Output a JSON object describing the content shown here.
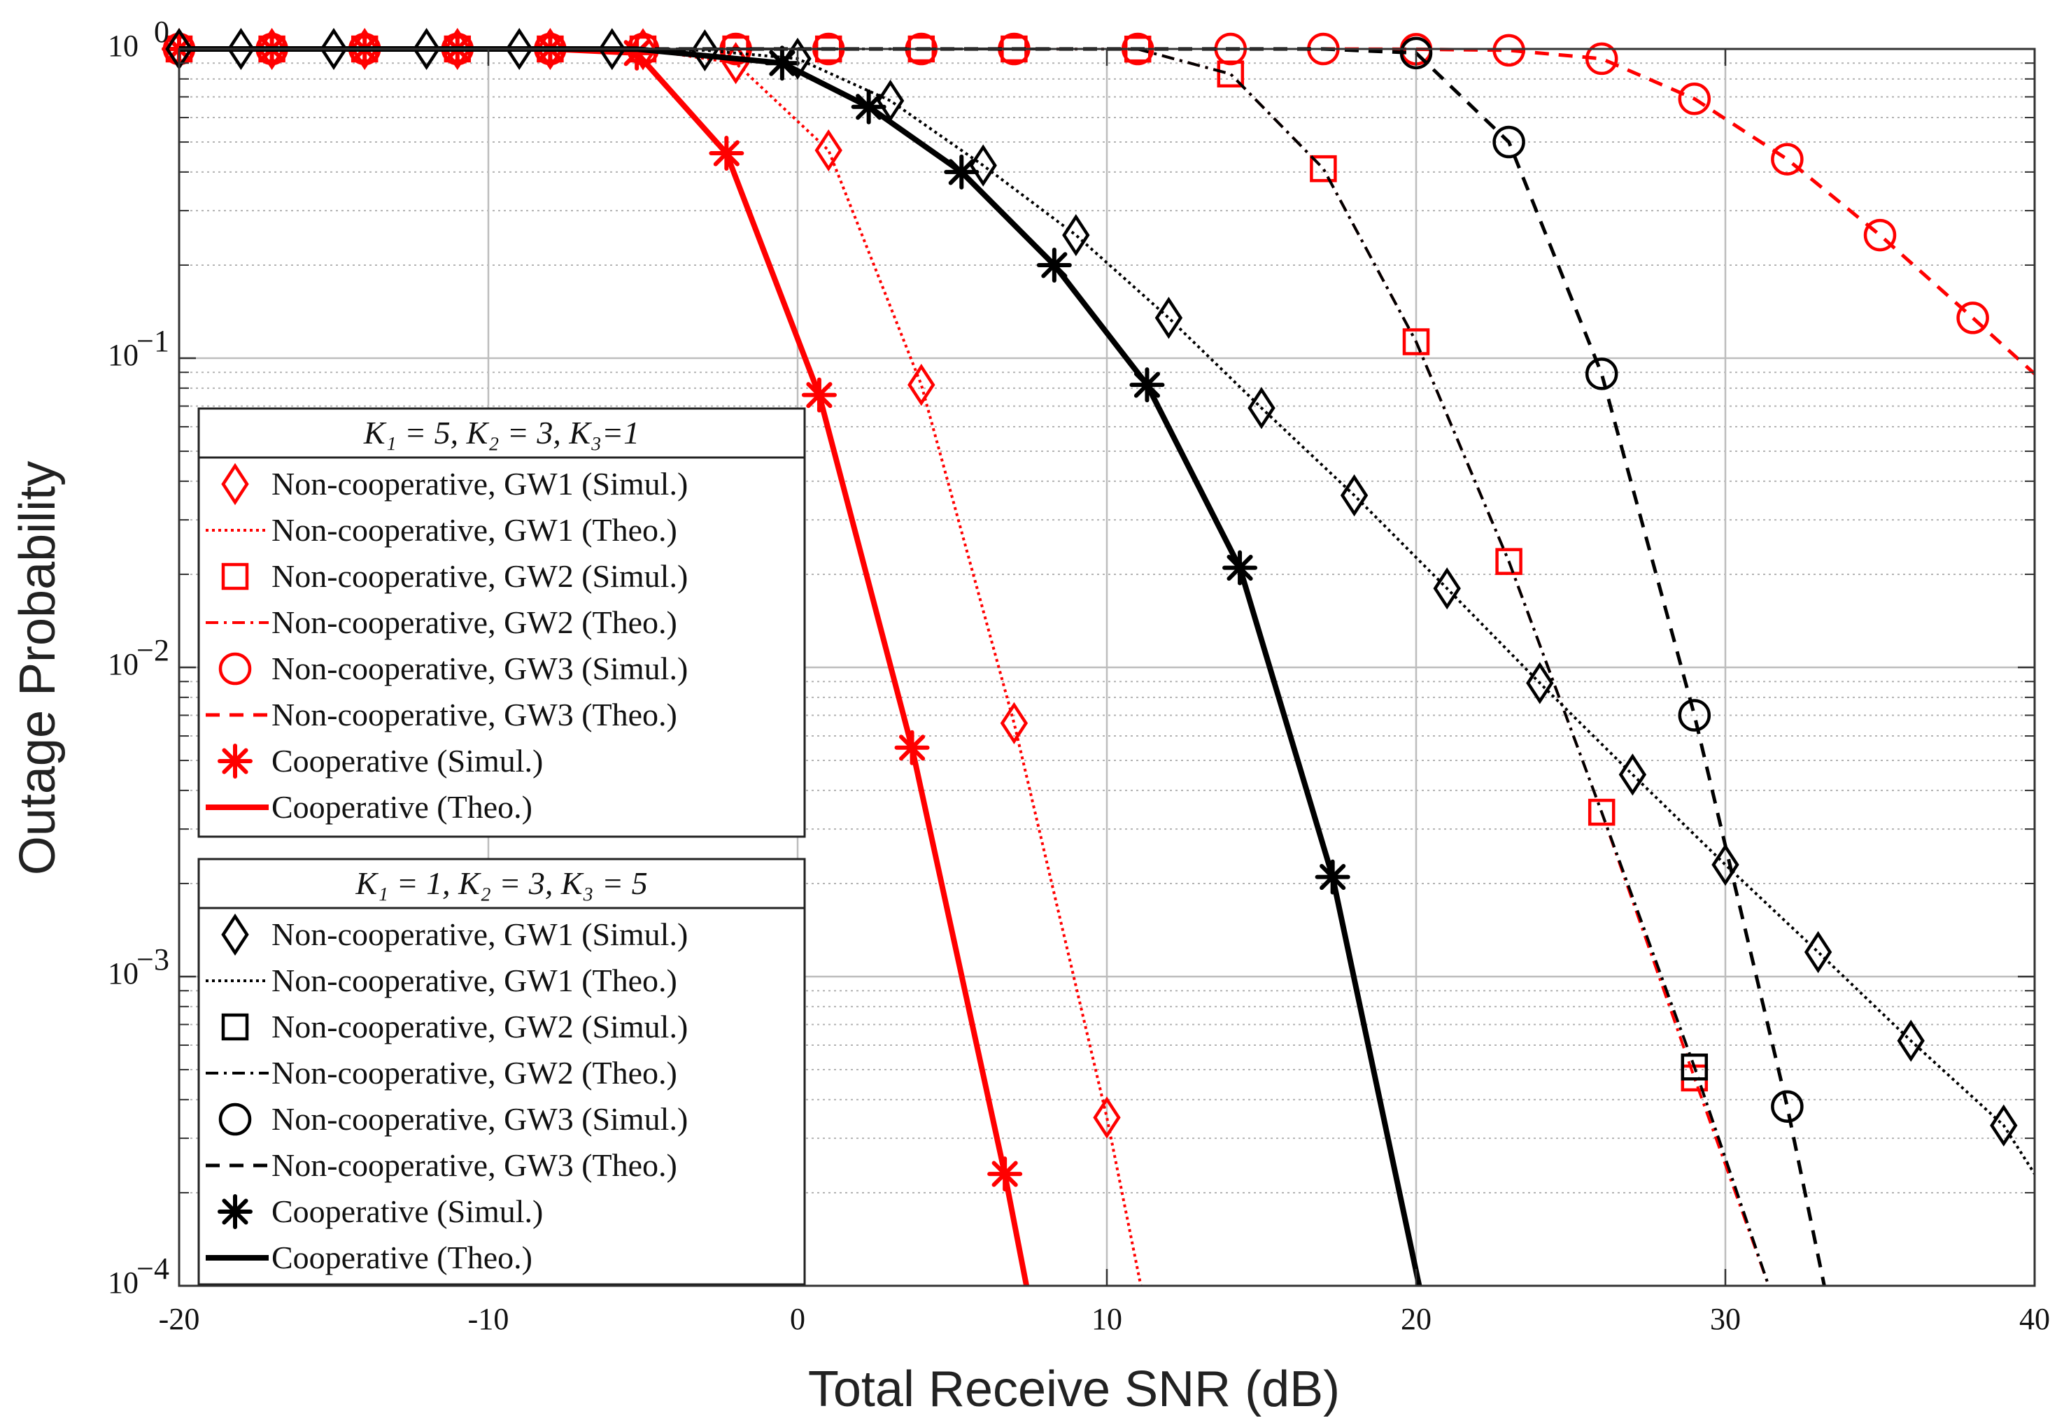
{
  "chart_data": {
    "type": "line",
    "title": "",
    "xlabel": "Total Receive SNR (dB)",
    "ylabel": "Outage Probability",
    "xlim": [
      -20,
      40
    ],
    "ylim": [
      0.0001,
      1
    ],
    "yscale": "log",
    "grid": true,
    "x_ticks": [
      -20,
      -10,
      0,
      10,
      20,
      30,
      40
    ],
    "x_tick_labels": [
      "-20",
      "-10",
      "0",
      "10",
      "20",
      "30",
      "40"
    ],
    "y_ticks": [
      0.0001,
      0.001,
      0.01,
      0.1,
      1
    ],
    "y_tick_labels": [
      {
        "base": "10",
        "exp": "−4"
      },
      {
        "base": "10",
        "exp": "−3"
      },
      {
        "base": "10",
        "exp": "−2"
      },
      {
        "base": "10",
        "exp": "−1"
      },
      {
        "base": "10",
        "exp": "0"
      }
    ],
    "colors": {
      "red": "#ff0000",
      "black": "#000000",
      "grid": "#bdbdbd",
      "minor_grid": "#b3b3b3"
    },
    "legends": [
      {
        "title": "K₁ = 5, K₂ = 3, K₃=1",
        "entries": [
          {
            "label": "Non-cooperative, GW1 (Simul.)",
            "color": "#ff0000",
            "marker": "diamond",
            "line": "none"
          },
          {
            "label": "Non-cooperative, GW1 (Theo.)",
            "color": "#ff0000",
            "marker": "none",
            "line": "dotted"
          },
          {
            "label": "Non-cooperative, GW2 (Simul.)",
            "color": "#ff0000",
            "marker": "square",
            "line": "none"
          },
          {
            "label": "Non-cooperative, GW2 (Theo.)",
            "color": "#ff0000",
            "marker": "none",
            "line": "dashdot"
          },
          {
            "label": "Non-cooperative, GW3 (Simul.)",
            "color": "#ff0000",
            "marker": "circle",
            "line": "none"
          },
          {
            "label": "Non-cooperative, GW3 (Theo.)",
            "color": "#ff0000",
            "marker": "none",
            "line": "dashed"
          },
          {
            "label": "Cooperative (Simul.)",
            "color": "#ff0000",
            "marker": "asterisk",
            "line": "none"
          },
          {
            "label": "Cooperative (Theo.)",
            "color": "#ff0000",
            "marker": "none",
            "line": "solid"
          }
        ]
      },
      {
        "title": "K₁ = 1, K₂ = 3, K₃ = 5",
        "entries": [
          {
            "label": "Non-cooperative, GW1 (Simul.)",
            "color": "#000000",
            "marker": "diamond",
            "line": "none"
          },
          {
            "label": "Non-cooperative, GW1 (Theo.)",
            "color": "#000000",
            "marker": "none",
            "line": "dotted"
          },
          {
            "label": "Non-cooperative, GW2 (Simul.)",
            "color": "#000000",
            "marker": "square",
            "line": "none"
          },
          {
            "label": "Non-cooperative, GW2 (Theo.)",
            "color": "#000000",
            "marker": "none",
            "line": "dashdot"
          },
          {
            "label": "Non-cooperative, GW3 (Simul.)",
            "color": "#000000",
            "marker": "circle",
            "line": "none"
          },
          {
            "label": "Non-cooperative, GW3 (Theo.)",
            "color": "#000000",
            "marker": "none",
            "line": "dashed"
          },
          {
            "label": "Cooperative (Simul.)",
            "color": "#000000",
            "marker": "asterisk",
            "line": "none"
          },
          {
            "label": "Cooperative (Theo.)",
            "color": "#000000",
            "marker": "none",
            "line": "solid"
          }
        ]
      }
    ],
    "series": [
      {
        "name": "Set1 Non-cooperative GW1",
        "color": "#ff0000",
        "line": "dotted",
        "marker": "diamond",
        "x": [
          -20,
          -17,
          -14,
          -11,
          -8,
          -5,
          -2,
          1,
          4,
          7,
          10,
          11.1
        ],
        "y": [
          1,
          1,
          1,
          1,
          1,
          0.998,
          0.9,
          0.47,
          0.082,
          0.0066,
          0.00035,
          0.0001
        ],
        "marker_x": [
          -20,
          -17,
          -14,
          -11,
          -8,
          -5,
          -2,
          1,
          4,
          7,
          10
        ]
      },
      {
        "name": "Set1 Non-cooperative GW2",
        "color": "#ff0000",
        "line": "dashdot",
        "marker": "square",
        "x": [
          -20,
          -17,
          -14,
          -11,
          -8,
          -5,
          -2,
          1,
          4,
          7,
          11,
          14,
          17,
          20,
          23,
          26,
          29,
          31.4
        ],
        "y": [
          1,
          1,
          1,
          1,
          1,
          1,
          1,
          1,
          1,
          1,
          0.999,
          0.83,
          0.41,
          0.113,
          0.022,
          0.0034,
          0.00047,
          0.0001
        ],
        "marker_x": [
          -20,
          -17,
          -14,
          -11,
          -8,
          -5,
          -2,
          1,
          4,
          7,
          11,
          14,
          17,
          20,
          23,
          26,
          29
        ]
      },
      {
        "name": "Set1 Non-cooperative GW3",
        "color": "#ff0000",
        "line": "dashed",
        "marker": "circle",
        "x": [
          -20,
          -17,
          -14,
          -11,
          -8,
          -5,
          -2,
          1,
          4,
          7,
          11,
          14,
          17,
          20,
          23,
          26,
          29,
          32,
          35,
          38,
          40
        ],
        "y": [
          1,
          1,
          1,
          1,
          1,
          1,
          1,
          1,
          1,
          1,
          1,
          1,
          1,
          0.998,
          0.99,
          0.93,
          0.69,
          0.44,
          0.25,
          0.135,
          0.089
        ],
        "marker_x": [
          -20,
          -17,
          -14,
          -11,
          -8,
          -5,
          -2,
          1,
          4,
          7,
          11,
          14,
          17,
          20,
          23,
          26,
          29,
          32,
          35,
          38
        ]
      },
      {
        "name": "Set1 Cooperative",
        "color": "#ff0000",
        "line": "solid",
        "marker": "asterisk",
        "x": [
          -20,
          -17,
          -14,
          -11,
          -8,
          -5.2,
          -2.3,
          0.7,
          3.7,
          6.7,
          7.4
        ],
        "y": [
          1,
          1,
          1,
          1,
          1,
          0.97,
          0.46,
          0.076,
          0.0055,
          0.00023,
          0.0001
        ],
        "marker_x": [
          -20,
          -17,
          -14,
          -11,
          -8,
          -5.2,
          -2.3,
          0.7,
          3.7,
          6.7
        ]
      },
      {
        "name": "Set2 Non-cooperative GW1",
        "color": "#000000",
        "line": "dotted",
        "marker": "diamond",
        "x": [
          -20,
          -18,
          -15,
          -12,
          -9,
          -6,
          -3,
          0,
          3,
          6,
          9,
          12,
          15,
          18,
          21,
          24,
          27,
          30,
          33,
          36,
          39,
          40
        ],
        "y": [
          1,
          1,
          1,
          1,
          1,
          0.999,
          0.99,
          0.93,
          0.68,
          0.42,
          0.25,
          0.135,
          0.069,
          0.036,
          0.018,
          0.0089,
          0.0045,
          0.0023,
          0.0012,
          0.00062,
          0.00033,
          0.00023
        ],
        "marker_x": [
          -20,
          -18,
          -15,
          -12,
          -9,
          -6,
          -3,
          0,
          3,
          6,
          9,
          12,
          15,
          18,
          21,
          24,
          27,
          30,
          33,
          36,
          39
        ]
      },
      {
        "name": "Set2 Non-cooperative GW2",
        "color": "#000000",
        "line": "dashdot",
        "marker": "square",
        "x": [
          -20,
          -17,
          -14,
          -11,
          -8,
          -5,
          -2,
          1,
          4,
          7,
          11,
          14,
          17,
          20,
          23,
          26,
          29,
          31.4
        ],
        "y": [
          1,
          1,
          1,
          1,
          1,
          1,
          1,
          1,
          1,
          1,
          0.999,
          0.83,
          0.41,
          0.113,
          0.022,
          0.0034,
          0.00051,
          0.0001
        ],
        "marker_x": [
          29
        ]
      },
      {
        "name": "Set2 Non-cooperative GW3",
        "color": "#000000",
        "line": "dashed",
        "marker": "circle",
        "x": [
          -20,
          -17,
          -14,
          -11,
          -8,
          -5,
          -2,
          1,
          4,
          7,
          10,
          14,
          17,
          20,
          23,
          26,
          29,
          32,
          33.2
        ],
        "y": [
          1,
          1,
          1,
          1,
          1,
          1,
          1,
          1,
          1,
          1,
          1,
          1,
          1,
          0.97,
          0.5,
          0.089,
          0.007,
          0.00038,
          0.0001
        ],
        "marker_x": [
          20,
          23,
          26,
          29,
          32
        ]
      },
      {
        "name": "Set2 Cooperative",
        "color": "#000000",
        "line": "solid",
        "marker": "asterisk",
        "x": [
          -20,
          -17,
          -14,
          -11,
          -8,
          -5.2,
          -0.5,
          2.3,
          5.3,
          8.3,
          11.3,
          14.3,
          17.3,
          20.1
        ],
        "y": [
          1,
          1,
          1,
          1,
          1,
          0.999,
          0.9,
          0.65,
          0.4,
          0.2,
          0.082,
          0.021,
          0.0021,
          0.0001
        ],
        "marker_x": [
          -0.5,
          2.3,
          5.3,
          8.3,
          11.3,
          14.3,
          17.3
        ]
      }
    ]
  }
}
